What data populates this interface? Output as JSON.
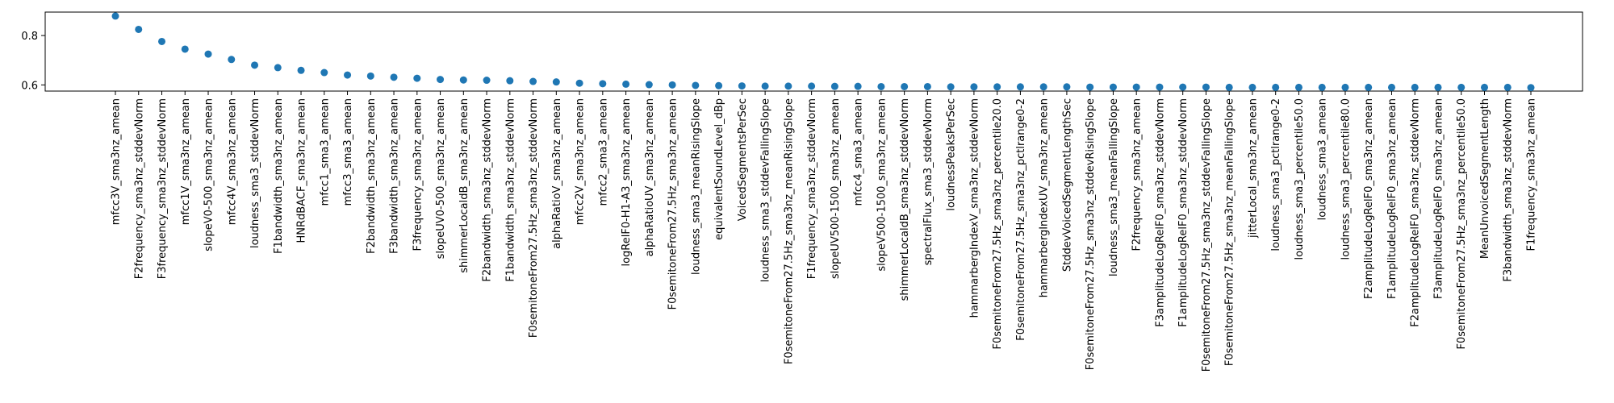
{
  "chart_data": {
    "type": "scatter",
    "title": "",
    "xlabel": "",
    "ylabel": "",
    "ylim": [
      0.575,
      0.895
    ],
    "yticks": [
      0.6,
      0.8
    ],
    "grid": false,
    "colors": {
      "marker": "#1f77b4"
    },
    "categories": [
      "mfcc3V_sma3nz_amean",
      "F2frequency_sma3nz_stddevNorm",
      "F3frequency_sma3nz_stddevNorm",
      "mfcc1V_sma3nz_amean",
      "slopeV0-500_sma3nz_amean",
      "mfcc4V_sma3nz_amean",
      "loudness_sma3_stddevNorm",
      "F1bandwidth_sma3nz_amean",
      "HNRdBACF_sma3nz_amean",
      "mfcc1_sma3_amean",
      "mfcc3_sma3_amean",
      "F2bandwidth_sma3nz_amean",
      "F3bandwidth_sma3nz_amean",
      "F3frequency_sma3nz_amean",
      "slopeUV0-500_sma3nz_amean",
      "shimmerLocaldB_sma3nz_amean",
      "F2bandwidth_sma3nz_stddevNorm",
      "F1bandwidth_sma3nz_stddevNorm",
      "F0semitoneFrom27.5Hz_sma3nz_stddevNorm",
      "alphaRatioV_sma3nz_amean",
      "mfcc2V_sma3nz_amean",
      "mfcc2_sma3_amean",
      "logRelF0-H1-A3_sma3nz_amean",
      "alphaRatioUV_sma3nz_amean",
      "F0semitoneFrom27.5Hz_sma3nz_amean",
      "loudness_sma3_meanRisingSlope",
      "equivalentSoundLevel_dBp",
      "VoicedSegmentsPerSec",
      "loudness_sma3_stddevFallingSlope",
      "F0semitoneFrom27.5Hz_sma3nz_meanRisingSlope",
      "F1frequency_sma3nz_stddevNorm",
      "slopeUV500-1500_sma3nz_amean",
      "mfcc4_sma3_amean",
      "slopeV500-1500_sma3nz_amean",
      "shimmerLocaldB_sma3nz_stddevNorm",
      "spectralFlux_sma3_stddevNorm",
      "loudnessPeaksPerSec",
      "hammarbergIndexV_sma3nz_stddevNorm",
      "F0semitoneFrom27.5Hz_sma3nz_percentile20.0",
      "F0semitoneFrom27.5Hz_sma3nz_pctlrange0-2",
      "hammarbergIndexUV_sma3nz_amean",
      "StddevVoicedSegmentLengthSec",
      "F0semitoneFrom27.5Hz_sma3nz_stddevRisingSlope",
      "loudness_sma3_meanFallingSlope",
      "F2frequency_sma3nz_amean",
      "F3amplitudeLogRelF0_sma3nz_stddevNorm",
      "F1amplitudeLogRelF0_sma3nz_stddevNorm",
      "F0semitoneFrom27.5Hz_sma3nz_stddevFallingSlope",
      "F0semitoneFrom27.5Hz_sma3nz_meanFallingSlope",
      "jitterLocal_sma3nz_amean",
      "loudness_sma3_pctlrange0-2",
      "loudness_sma3_percentile50.0",
      "loudness_sma3_amean",
      "loudness_sma3_percentile80.0",
      "F2amplitudeLogRelF0_sma3nz_amean",
      "F1amplitudeLogRelF0_sma3nz_amean",
      "F2amplitudeLogRelF0_sma3nz_stddevNorm",
      "F3amplitudeLogRelF0_sma3nz_amean",
      "F0semitoneFrom27.5Hz_sma3nz_percentile50.0",
      "MeanUnvoicedSegmentLength",
      "F3bandwidth_sma3nz_stddevNorm",
      "F1frequency_sma3nz_amean"
    ],
    "values": [
      0.879,
      0.825,
      0.776,
      0.745,
      0.725,
      0.703,
      0.68,
      0.67,
      0.659,
      0.65,
      0.64,
      0.636,
      0.631,
      0.627,
      0.622,
      0.62,
      0.619,
      0.617,
      0.614,
      0.612,
      0.607,
      0.605,
      0.603,
      0.601,
      0.6,
      0.598,
      0.597,
      0.596,
      0.595,
      0.595,
      0.595,
      0.594,
      0.594,
      0.593,
      0.593,
      0.593,
      0.592,
      0.592,
      0.592,
      0.592,
      0.592,
      0.592,
      0.591,
      0.591,
      0.591,
      0.591,
      0.591,
      0.591,
      0.59,
      0.59,
      0.59,
      0.59,
      0.59,
      0.59,
      0.59,
      0.59,
      0.59,
      0.59,
      0.59,
      0.59,
      0.59,
      0.589
    ]
  }
}
